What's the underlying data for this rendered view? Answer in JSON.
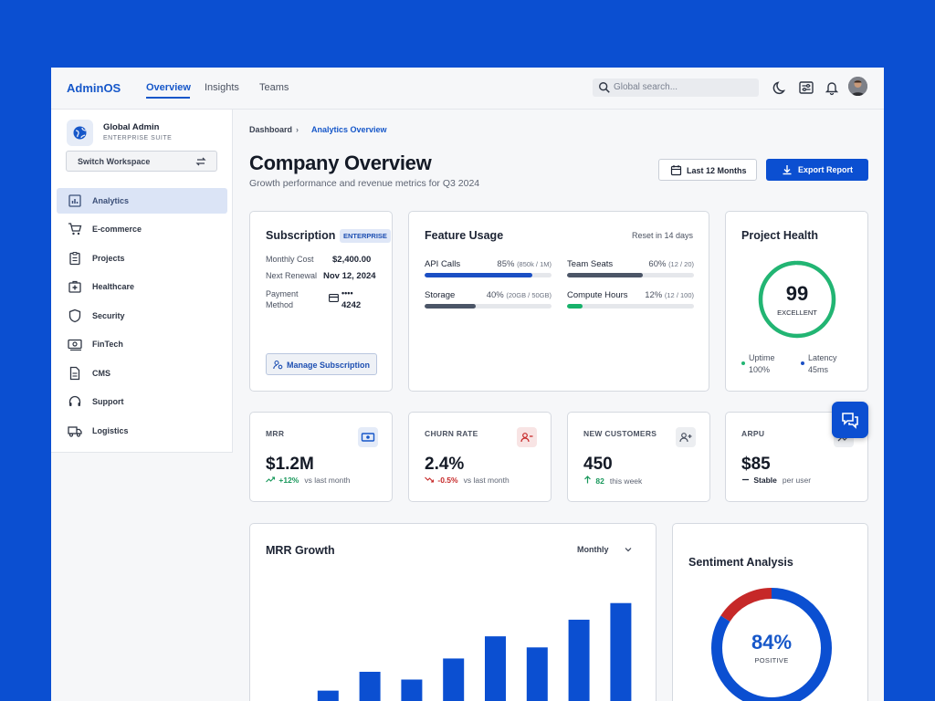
{
  "app": {
    "name": "AdminOS"
  },
  "nav": {
    "tabs": [
      {
        "label": "Overview"
      },
      {
        "label": "Insights"
      },
      {
        "label": "Teams"
      }
    ]
  },
  "search": {
    "placeholder": "Global search..."
  },
  "workspace": {
    "name": "Global Admin",
    "subtitle": "ENTERPRISE SUITE",
    "switch_label": "Switch Workspace"
  },
  "sidebar": {
    "items": [
      {
        "label": "Analytics",
        "icon": "chart-icon"
      },
      {
        "label": "E-commerce",
        "icon": "cart-icon"
      },
      {
        "label": "Projects",
        "icon": "clipboard-icon"
      },
      {
        "label": "Healthcare",
        "icon": "medical-kit-icon"
      },
      {
        "label": "Security",
        "icon": "shield-icon"
      },
      {
        "label": "FinTech",
        "icon": "cash-icon"
      },
      {
        "label": "CMS",
        "icon": "document-icon"
      },
      {
        "label": "Support",
        "icon": "headset-icon"
      },
      {
        "label": "Logistics",
        "icon": "truck-icon"
      }
    ]
  },
  "breadcrumb": {
    "root": "Dashboard",
    "current": "Analytics Overview"
  },
  "page": {
    "title": "Company Overview",
    "subtitle": "Growth performance and revenue metrics for Q3 2024"
  },
  "actions": {
    "range_label": "Last 12 Months",
    "export_label": "Export Report"
  },
  "subscription": {
    "title": "Subscription",
    "badge": "ENTERPRISE",
    "monthly_cost_label": "Monthly Cost",
    "monthly_cost": "$2,400.00",
    "renewal_label": "Next Renewal",
    "renewal": "Nov 12, 2024",
    "payment_label_1": "Payment",
    "payment_label_2": "Method",
    "card_dots": "••••",
    "card_last4": "4242",
    "manage_label": "Manage Subscription"
  },
  "feature_usage": {
    "title": "Feature Usage",
    "reset": "Reset in 14 days",
    "items": [
      {
        "name": "API Calls",
        "pct": "85%",
        "detail": "(850k / 1M)",
        "fraction": 0.85,
        "color": "#1b4fc4"
      },
      {
        "name": "Team Seats",
        "pct": "60%",
        "detail": "(12 / 20)",
        "fraction": 0.6,
        "color": "#4b5567"
      },
      {
        "name": "Storage",
        "pct": "40%",
        "detail": "(20GB / 50GB)",
        "fraction": 0.4,
        "color": "#4b5567"
      },
      {
        "name": "Compute Hours",
        "pct": "12%",
        "detail": "(12 / 100)",
        "fraction": 0.12,
        "color": "#17b26a"
      }
    ]
  },
  "health": {
    "title": "Project Health",
    "score": "99",
    "score_label": "EXCELLENT",
    "fraction": 0.99,
    "uptime_label": "Uptime",
    "uptime": "100%",
    "latency_label": "Latency",
    "latency": "45ms",
    "ring_color": "#22b573"
  },
  "kpis": [
    {
      "label": "MRR",
      "value": "$1.2M",
      "delta": "+12%",
      "caption": "vs last month",
      "trend": "up",
      "delta_color": "#17975a"
    },
    {
      "label": "CHURN RATE",
      "value": "2.4%",
      "delta": "-0.5%",
      "caption": "vs last month",
      "trend": "down",
      "delta_color": "#c62828"
    },
    {
      "label": "NEW CUSTOMERS",
      "value": "450",
      "delta": "82",
      "caption": "this week",
      "trend": "up-arrow",
      "delta_color": "#17975a"
    },
    {
      "label": "ARPU",
      "value": "$85",
      "delta": "Stable",
      "caption": "per user",
      "trend": "flat",
      "delta_color": "#1c2333"
    }
  ],
  "mrr_growth": {
    "title": "MRR Growth",
    "period": "Monthly"
  },
  "chart_data": {
    "type": "bar",
    "categories": [
      "",
      "",
      "",
      "",
      "",
      "",
      "",
      "",
      ""
    ],
    "values": [
      25,
      39,
      56,
      49,
      68,
      88,
      78,
      103,
      118
    ],
    "ylim": [
      0,
      140
    ],
    "color": "#0b4fd1",
    "grid": false
  },
  "sentiment": {
    "title": "Sentiment Analysis",
    "value": "84%",
    "label": "POSITIVE",
    "positive": 0.84,
    "negative": 0.16,
    "positive_color": "#0b4fd1",
    "negative_color": "#c62828"
  },
  "colors": {
    "brand": "#0b4fd1",
    "accent": "#1657c9",
    "background": "#f6f7f9"
  }
}
